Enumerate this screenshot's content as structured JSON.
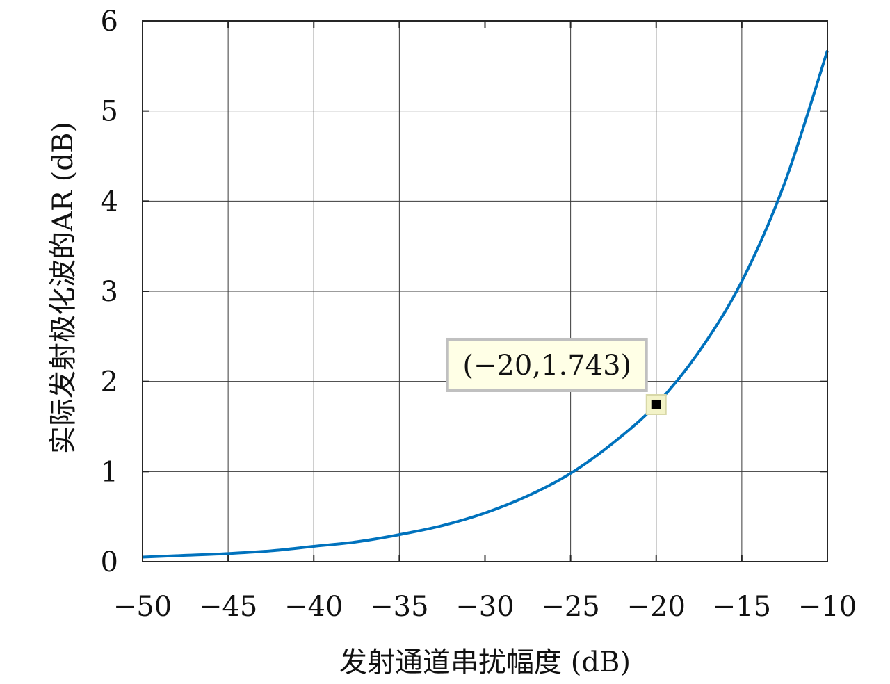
{
  "chart_data": {
    "type": "line",
    "xlabel": "发射通道串扰幅度 (dB)",
    "ylabel": "实际发射极化波的AR (dB)",
    "xlim": [
      -50,
      -10
    ],
    "ylim": [
      0,
      6
    ],
    "x_ticks": [
      -50,
      -45,
      -40,
      -35,
      -30,
      -25,
      -20,
      -15,
      -10
    ],
    "y_ticks": [
      0,
      1,
      2,
      3,
      4,
      5,
      6
    ],
    "x_tick_labels": [
      "−50",
      "−45",
      "−40",
      "−35",
      "−30",
      "−25",
      "−20",
      "−15",
      "−10"
    ],
    "y_tick_labels": [
      "0",
      "1",
      "2",
      "3",
      "4",
      "5",
      "6"
    ],
    "grid": true,
    "series": [
      {
        "color": "#0072BD",
        "x": [
          -50,
          -47.5,
          -45,
          -42.5,
          -40,
          -37.5,
          -35,
          -32.5,
          -30,
          -27.5,
          -25,
          -22.5,
          -20,
          -17.5,
          -15,
          -12.5,
          -10
        ],
        "y": [
          0.05,
          0.07,
          0.09,
          0.12,
          0.17,
          0.22,
          0.3,
          0.4,
          0.54,
          0.73,
          0.98,
          1.32,
          1.743,
          2.33,
          3.11,
          4.2,
          5.67
        ]
      }
    ],
    "annotation": {
      "x": -20,
      "y": 1.743,
      "label": "(−20,1.743)"
    }
  }
}
